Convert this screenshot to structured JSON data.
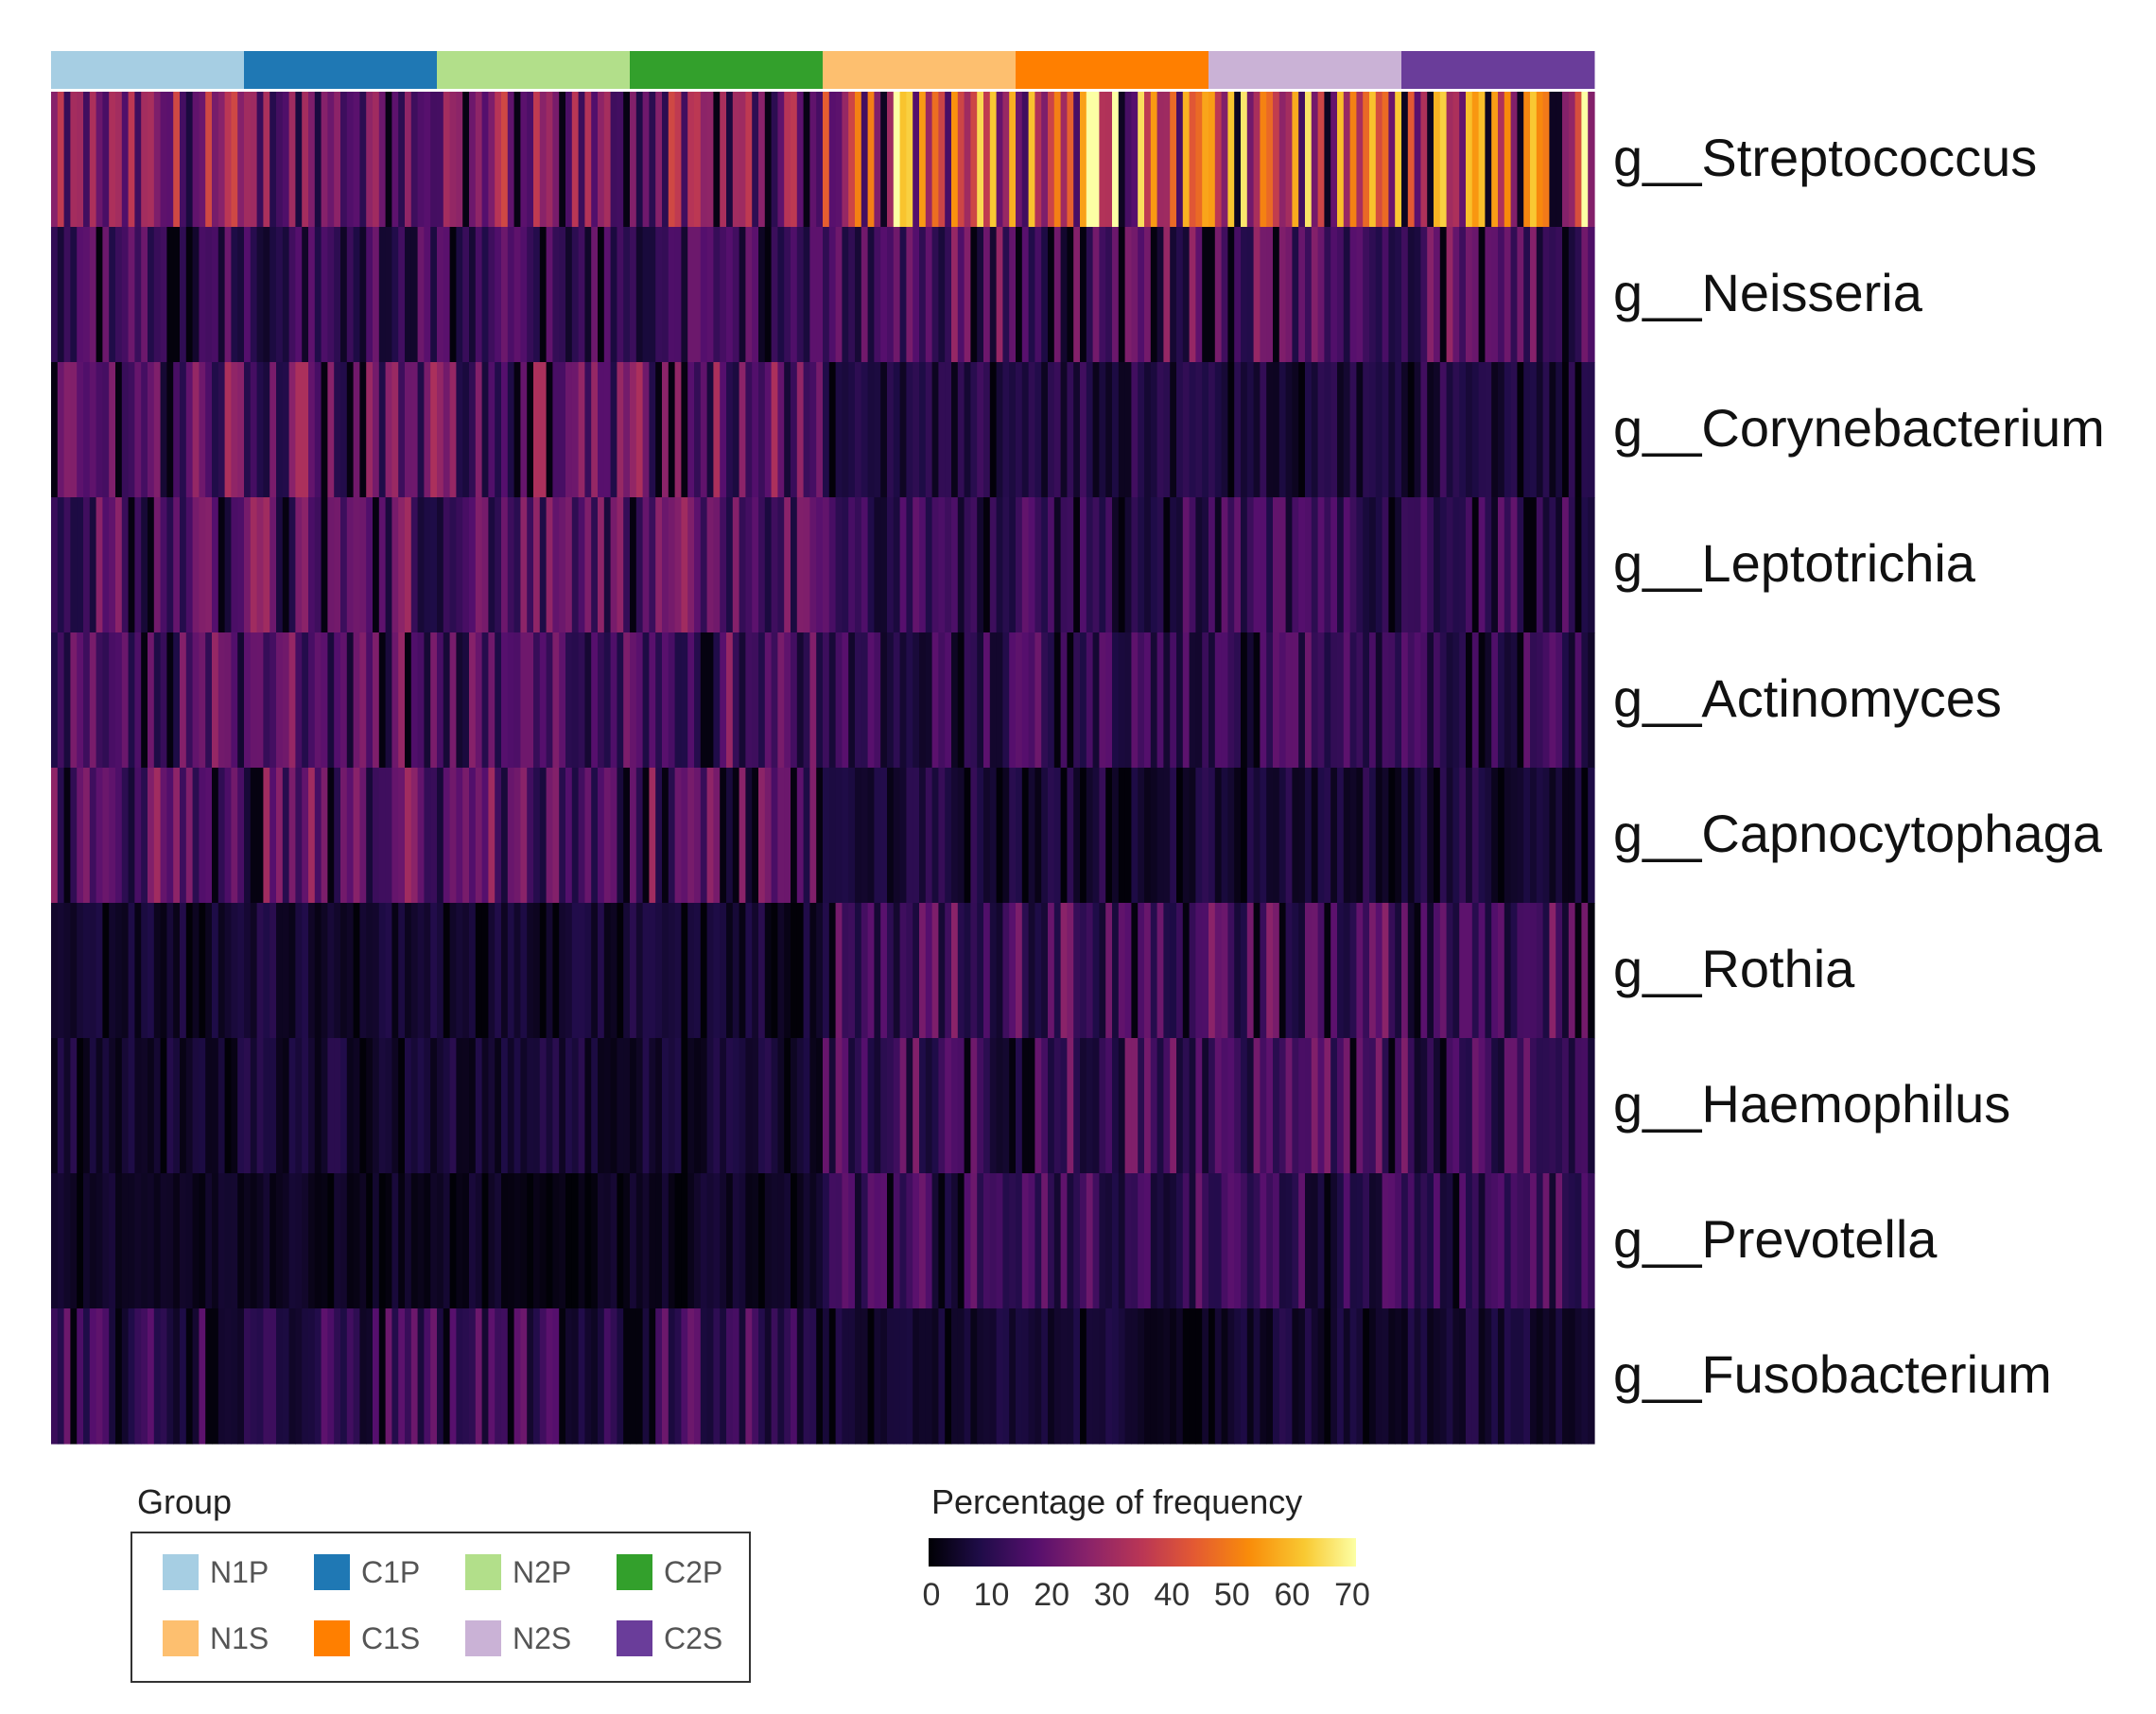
{
  "chart_data": {
    "type": "heatmap",
    "rows": [
      "g__Streptococcus",
      "g__Neisseria",
      "g__Corynebacterium",
      "g__Leptotrichia",
      "g__Actinomyces",
      "g__Capnocytophaga",
      "g__Rothia",
      "g__Haemophilus",
      "g__Prevotella",
      "g__Fusobacterium"
    ],
    "groups": [
      {
        "name": "N1P",
        "color": "#a6cee3"
      },
      {
        "name": "C1P",
        "color": "#1f78b4"
      },
      {
        "name": "N2P",
        "color": "#b2df8a"
      },
      {
        "name": "C2P",
        "color": "#33a02c"
      },
      {
        "name": "N1S",
        "color": "#fdbf6f"
      },
      {
        "name": "C1S",
        "color": "#ff7f00"
      },
      {
        "name": "N2S",
        "color": "#cab2d6"
      },
      {
        "name": "C2S",
        "color": "#6a3d9a"
      }
    ],
    "samples_per_group": 30,
    "approx_mean_percent": {
      "P_groups": [
        22,
        12,
        18,
        17,
        16,
        17,
        6,
        6,
        4,
        12
      ],
      "S_groups": [
        40,
        16,
        8,
        11,
        12,
        7,
        15,
        14,
        12,
        6
      ]
    },
    "colorbar_ticks": [
      0,
      10,
      20,
      30,
      40,
      50,
      60,
      70
    ],
    "colormap": "inferno",
    "value_range": [
      0,
      70
    ]
  },
  "legend": {
    "title": "Group"
  },
  "colorbar": {
    "title": "Percentage of frequency"
  }
}
